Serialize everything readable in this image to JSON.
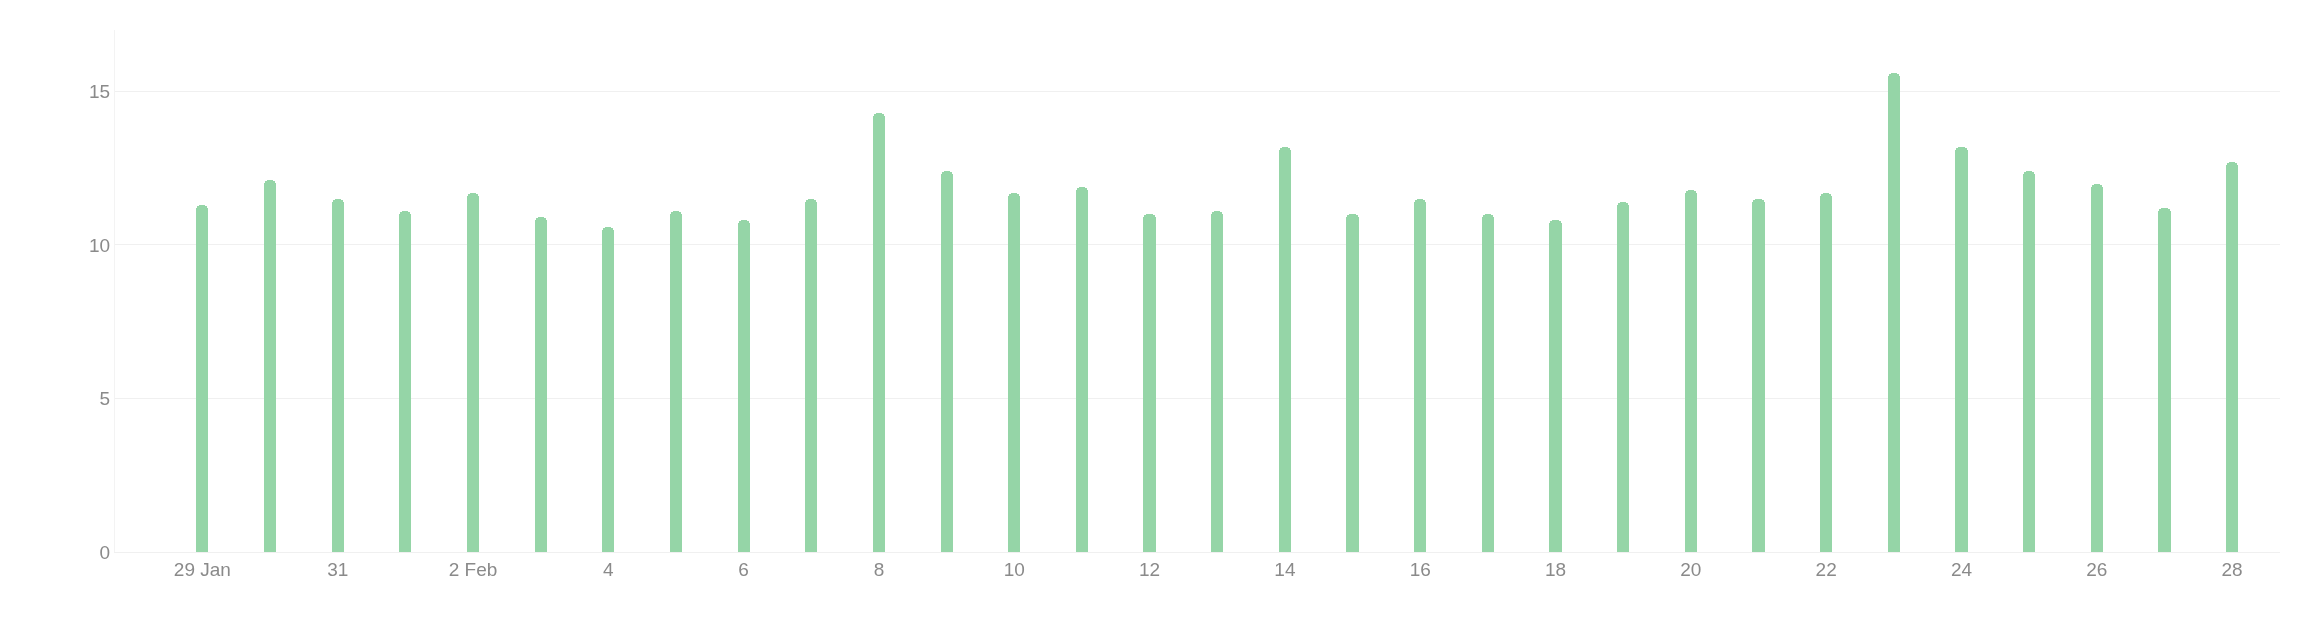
{
  "chart_data": {
    "type": "bar",
    "x": [
      "--01-29",
      "--01-30",
      "--01-31",
      "--02-01",
      "--02-02",
      "--02-03",
      "--02-04",
      "--02-05",
      "--02-06",
      "--02-07",
      "--02-08",
      "--02-09",
      "--02-10",
      "--02-11",
      "--02-12",
      "--02-13",
      "--02-14",
      "--02-15",
      "--02-16",
      "--02-17",
      "--02-18",
      "--02-19",
      "--02-20",
      "--02-21",
      "--02-22",
      "--02-23",
      "--02-24",
      "--02-25",
      "--02-26",
      "--02-27",
      "--02-28"
    ],
    "values": [
      11.3,
      12.1,
      11.5,
      11.1,
      11.7,
      10.9,
      10.6,
      11.1,
      10.8,
      11.5,
      14.3,
      12.4,
      11.7,
      11.9,
      11.0,
      11.1,
      13.2,
      11.0,
      11.5,
      11.0,
      10.8,
      11.4,
      11.8,
      11.5,
      11.7,
      15.6,
      13.2,
      12.4,
      12.0,
      11.2,
      12.7
    ],
    "color": "#95d5a7",
    "xlim": [
      "--01-27T17:00",
      "--02-28T17:00"
    ],
    "xticks": [
      {
        "value": "--01-29",
        "label": "29 Jan"
      },
      {
        "value": "--01-31",
        "label": "31"
      },
      {
        "value": "--02-02",
        "label": "2 Feb"
      },
      {
        "value": "--02-04",
        "label": "4"
      },
      {
        "value": "--02-06",
        "label": "6"
      },
      {
        "value": "--02-08",
        "label": "8"
      },
      {
        "value": "--02-10",
        "label": "10"
      },
      {
        "value": "--02-12",
        "label": "12"
      },
      {
        "value": "--02-14",
        "label": "14"
      },
      {
        "value": "--02-16",
        "label": "16"
      },
      {
        "value": "--02-18",
        "label": "18"
      },
      {
        "value": "--02-20",
        "label": "20"
      },
      {
        "value": "--02-22",
        "label": "22"
      },
      {
        "value": "--02-24",
        "label": "24"
      },
      {
        "value": "--02-26",
        "label": "26"
      },
      {
        "value": "--02-28",
        "label": "28"
      }
    ],
    "ylim": [
      0,
      17
    ],
    "yticks": [
      0,
      5,
      10,
      15
    ],
    "grid": "y"
  }
}
